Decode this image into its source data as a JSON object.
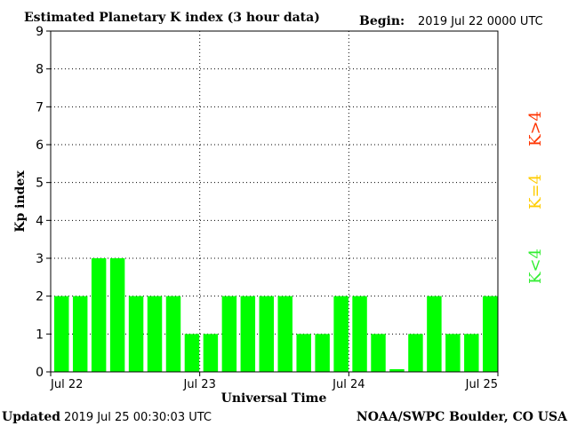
{
  "header": {
    "title": "Estimated Planetary K index (3 hour data)",
    "begin_label": "Begin:",
    "begin_value": "2019 Jul 22 0000 UTC"
  },
  "footer": {
    "updated_label": "Updated",
    "updated_value": "2019 Jul 25 00:30:03 UTC",
    "source": "NOAA/SWPC Boulder, CO USA"
  },
  "legend": [
    {
      "label": "K<4",
      "color": "#33ee33"
    },
    {
      "label": "K=4",
      "color": "#ffcc00"
    },
    {
      "label": "K>4",
      "color": "#ff3300"
    }
  ],
  "colors": {
    "bar": "#00ff00",
    "axis": "#000000",
    "grid": "#000000"
  },
  "chart_data": {
    "type": "bar",
    "title": "Estimated Planetary K index (3 hour data)",
    "xlabel": "Universal Time",
    "ylabel": "Kp index",
    "ylim": [
      0,
      9
    ],
    "yticks": [
      0,
      1,
      2,
      3,
      4,
      5,
      6,
      7,
      8,
      9
    ],
    "xtick_labels": [
      "Jul 22",
      "Jul 23",
      "Jul 24",
      "Jul 25"
    ],
    "grid": "dotted",
    "series": [
      {
        "values": [
          2,
          2,
          3,
          3,
          2,
          2,
          2,
          1,
          1,
          2,
          2,
          2,
          2,
          1,
          1,
          2,
          2,
          1,
          0.07,
          1,
          2,
          1,
          1,
          2
        ]
      }
    ]
  }
}
